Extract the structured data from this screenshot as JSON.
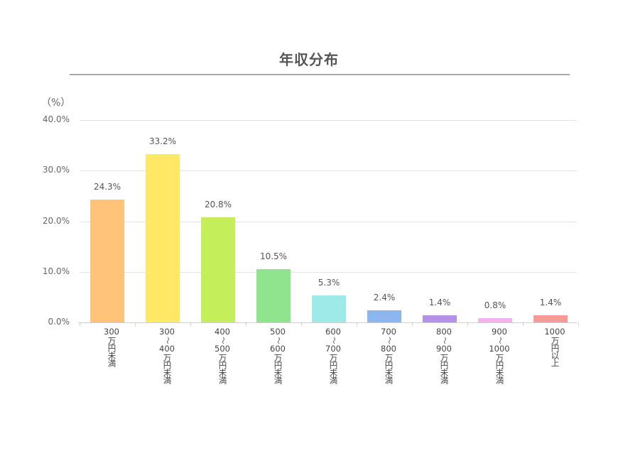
{
  "chart_data": {
    "type": "bar",
    "title": "年収分布",
    "xlabel": "",
    "ylabel": "（%）",
    "ylim": [
      0,
      40
    ],
    "yticks": [
      "0.0%",
      "10.0%",
      "20.0%",
      "30.0%",
      "40.0%"
    ],
    "grid": true,
    "legend": "none",
    "categories": [
      "300万円未満",
      "300～400万円未満",
      "400～500万円未満",
      "500～600万円未満",
      "600～700万円未満",
      "700～800万円未満",
      "800～900万円未満",
      "900～1000万円未満",
      "1000万円以上"
    ],
    "values": [
      24.3,
      33.2,
      20.8,
      10.5,
      5.3,
      2.4,
      1.4,
      0.8,
      1.4
    ],
    "data_labels": [
      "24.3%",
      "33.2%",
      "20.8%",
      "10.5%",
      "5.3%",
      "2.4%",
      "1.4%",
      "0.8%",
      "1.4%"
    ],
    "colors": [
      "#ffc47a",
      "#ffe866",
      "#c4ee5a",
      "#90e48e",
      "#9deae8",
      "#8db6ef",
      "#b592e6",
      "#f1b4f0",
      "#f59a96"
    ]
  },
  "axis_labels": [
    {
      "from": "300",
      "sep": "",
      "to": "",
      "suffix": "万円未満"
    },
    {
      "from": "300",
      "sep": "～",
      "to": "400",
      "suffix": "万円未満"
    },
    {
      "from": "400",
      "sep": "～",
      "to": "500",
      "suffix": "万円未満"
    },
    {
      "from": "500",
      "sep": "～",
      "to": "600",
      "suffix": "万円未満"
    },
    {
      "from": "600",
      "sep": "～",
      "to": "700",
      "suffix": "万円未満"
    },
    {
      "from": "700",
      "sep": "～",
      "to": "800",
      "suffix": "万円未満"
    },
    {
      "from": "800",
      "sep": "～",
      "to": "900",
      "suffix": "万円未満"
    },
    {
      "from": "900",
      "sep": "～",
      "to": "1000",
      "suffix": "万円未満"
    },
    {
      "from": "1000",
      "sep": "",
      "to": "",
      "suffix": "万円以上"
    }
  ]
}
